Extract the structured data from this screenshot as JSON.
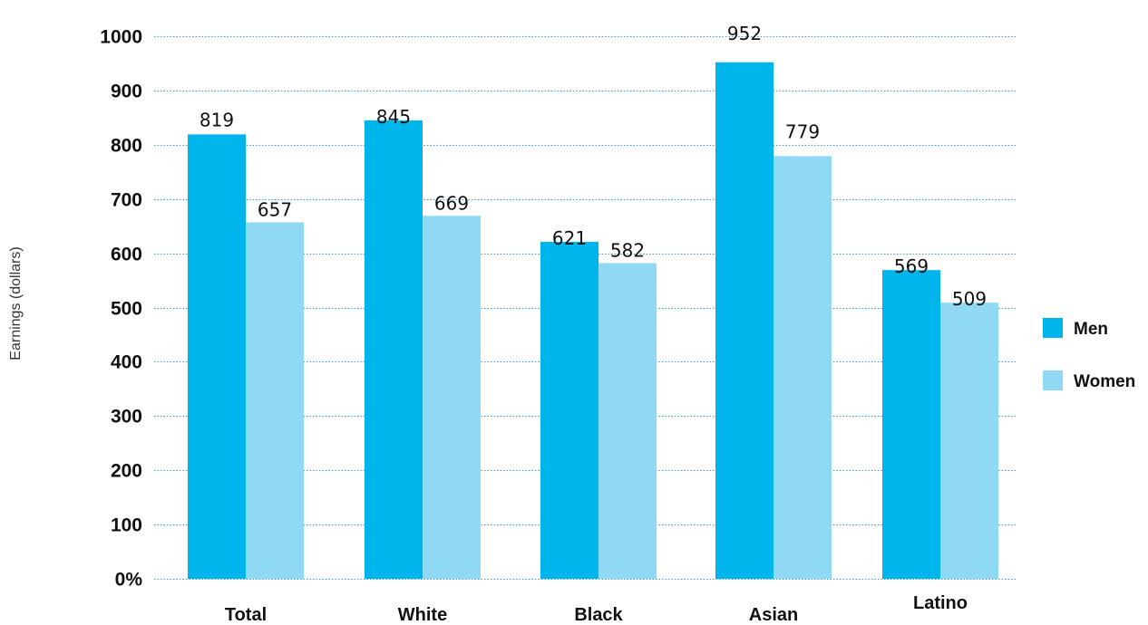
{
  "chart_data": {
    "type": "bar",
    "categories": [
      "Total",
      "White",
      "Black",
      "Asian",
      "Latino"
    ],
    "series": [
      {
        "name": "Men",
        "values": [
          819,
          845,
          621,
          952,
          569
        ],
        "color": "#00b5ec"
      },
      {
        "name": "Women",
        "values": [
          657,
          669,
          582,
          779,
          509
        ],
        "color": "#8fd9f5"
      }
    ],
    "ylabel": "Earnings (dollars)",
    "xlabel": "",
    "title": "",
    "ylim": [
      0,
      1000
    ],
    "yticks": [
      {
        "value": 0,
        "label": "0%"
      },
      {
        "value": 100,
        "label": "100"
      },
      {
        "value": 200,
        "label": "200"
      },
      {
        "value": 300,
        "label": "300"
      },
      {
        "value": 400,
        "label": "400"
      },
      {
        "value": 500,
        "label": "500"
      },
      {
        "value": 600,
        "label": "600"
      },
      {
        "value": 700,
        "label": "700"
      },
      {
        "value": 800,
        "label": "800"
      },
      {
        "value": 900,
        "label": "900"
      },
      {
        "value": 1000,
        "label": "1000"
      }
    ],
    "grid": true,
    "grid_color": "#3aa3d6",
    "legend_position": "right"
  }
}
